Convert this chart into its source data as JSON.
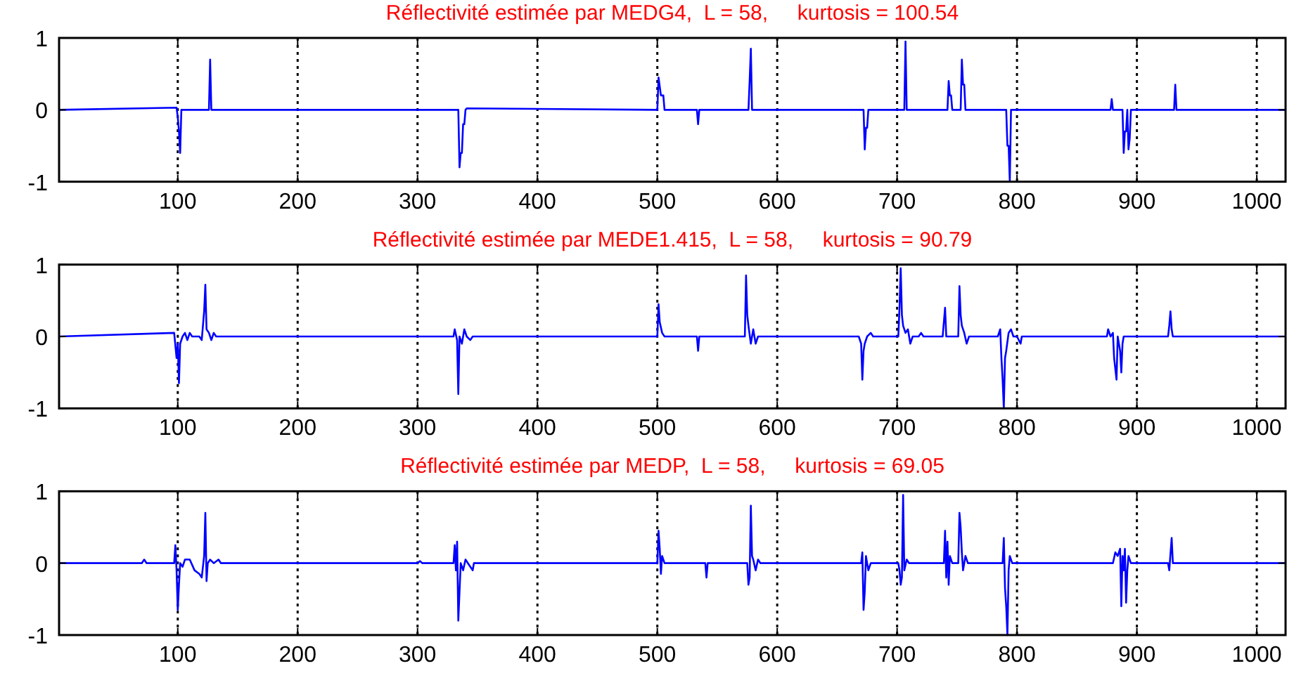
{
  "chart_data": [
    {
      "type": "line",
      "title": "Réflectivité estimée par MEDG4,  L = 58,     kurtosis = 100.54",
      "xlim": [
        1,
        1024
      ],
      "ylim": [
        -1,
        1
      ],
      "xticks": [
        100,
        200,
        300,
        400,
        500,
        600,
        700,
        800,
        900,
        1000
      ],
      "yticks": [
        -1,
        0,
        1
      ],
      "grid": "x",
      "line_style": "solid",
      "series": [
        {
          "color": "#0000ff",
          "x": [
            1,
            99,
            100,
            101,
            102,
            103,
            126,
            127,
            128,
            333,
            334,
            335,
            336,
            337,
            338,
            339,
            340,
            341,
            500,
            501,
            503,
            505,
            506,
            533,
            534,
            535,
            576,
            577,
            578,
            579,
            672,
            673,
            674,
            675,
            676,
            706,
            707,
            708,
            742,
            743,
            744,
            745,
            746,
            753,
            754,
            755,
            756,
            757,
            791,
            792,
            793,
            794,
            795,
            878,
            879,
            880,
            888,
            889,
            890,
            891,
            892,
            893,
            894,
            895,
            931,
            932,
            933,
            1024
          ],
          "values": [
            0,
            0.03,
            -0.1,
            -0.3,
            -0.6,
            0,
            0,
            0.7,
            0,
            0,
            0,
            -0.8,
            -0.6,
            -0.6,
            -0.2,
            -0.2,
            0,
            0.02,
            0,
            0.45,
            0.2,
            0.2,
            0,
            0,
            -0.2,
            0,
            0,
            0.4,
            0.85,
            0,
            0,
            -0.55,
            -0.25,
            -0.25,
            0,
            0,
            0.95,
            0,
            0,
            0.4,
            0.2,
            0.2,
            0,
            0,
            0.7,
            0.35,
            0.35,
            0,
            0,
            -0.5,
            -0.5,
            -1,
            0,
            0,
            0.15,
            0,
            0,
            -0.6,
            -0.3,
            -0.3,
            0,
            -0.55,
            -0.4,
            0,
            0,
            0.35,
            0,
            0
          ]
        }
      ]
    },
    {
      "type": "line",
      "title": "Réflectivité estimée par MEDE1.415,  L = 58,     kurtosis = 90.79",
      "xlim": [
        1,
        1024
      ],
      "ylim": [
        -1,
        1
      ],
      "xticks": [
        100,
        200,
        300,
        400,
        500,
        600,
        700,
        800,
        900,
        1000
      ],
      "yticks": [
        -1,
        0,
        1
      ],
      "grid": "x",
      "line_style": "solid",
      "series": [
        {
          "color": "#0000ff",
          "x": [
            1,
            97,
            99,
            100,
            101,
            102,
            104,
            106,
            108,
            110,
            112,
            118,
            120,
            122,
            123,
            124,
            126,
            128,
            130,
            132,
            330,
            331,
            333,
            334,
            335,
            337,
            339,
            341,
            344,
            346,
            500,
            501,
            502,
            504,
            506,
            533,
            534,
            535,
            573,
            574,
            575,
            576,
            578,
            580,
            582,
            584,
            668,
            670,
            671,
            672,
            673,
            675,
            678,
            680,
            701,
            702,
            703,
            704,
            705,
            707,
            709,
            711,
            713,
            718,
            720,
            722,
            738,
            740,
            741,
            745,
            751,
            752,
            753,
            754,
            756,
            758,
            760,
            784,
            786,
            787,
            788,
            789,
            790,
            791,
            793,
            795,
            797,
            800,
            803,
            804,
            875,
            876,
            878,
            880,
            881,
            883,
            884,
            886,
            887,
            888,
            889,
            926,
            927,
            928,
            929,
            930,
            1024
          ],
          "values": [
            0,
            0.05,
            -0.3,
            -0.1,
            -0.65,
            -0.1,
            0,
            0.05,
            -0.05,
            0.05,
            0,
            0,
            -0.05,
            0.35,
            0.72,
            0.1,
            0.05,
            -0.05,
            0.05,
            0,
            0,
            0.1,
            -0.05,
            -0.8,
            0,
            -0.1,
            0.1,
            0,
            -0.05,
            0,
            0,
            0.45,
            0.2,
            0.05,
            0,
            0,
            -0.2,
            0,
            0,
            0.85,
            0.3,
            0.15,
            -0.1,
            0.1,
            -0.1,
            0,
            0,
            -0.1,
            -0.6,
            -0.2,
            -0.1,
            0,
            0.05,
            0,
            0,
            0.4,
            0.95,
            0.3,
            0.15,
            0.05,
            0.1,
            -0.1,
            0,
            0,
            0.05,
            0,
            0,
            0.4,
            0,
            0,
            0,
            0.7,
            0.3,
            0.15,
            0.05,
            -0.1,
            0,
            0,
            0.1,
            -0.3,
            -0.6,
            -1,
            -0.3,
            -0.2,
            0.05,
            0.1,
            0,
            0,
            -0.1,
            0,
            0,
            0.1,
            0,
            0.05,
            -0.3,
            -0.6,
            0,
            -0.2,
            -0.5,
            -0.1,
            0,
            0,
            0.15,
            0.35,
            0.1,
            0,
            0
          ]
        }
      ]
    },
    {
      "type": "line",
      "title": "Réflectivité estimée par MEDP,  L = 58,     kurtosis = 69.05",
      "xlim": [
        1,
        1024
      ],
      "ylim": [
        -1,
        1
      ],
      "xticks": [
        100,
        200,
        300,
        400,
        500,
        600,
        700,
        800,
        900,
        1000
      ],
      "yticks": [
        -1,
        0,
        1
      ],
      "grid": "x",
      "line_style": "solid",
      "series": [
        {
          "color": "#0000ff",
          "x": [
            1,
            70,
            72,
            74,
            97,
            98,
            99,
            100,
            101,
            102,
            104,
            106,
            110,
            114,
            118,
            120,
            122,
            123,
            124,
            125,
            127,
            130,
            134,
            136,
            300,
            302,
            304,
            330,
            331,
            332,
            333,
            334,
            335,
            336,
            338,
            340,
            342,
            346,
            347,
            500,
            501,
            502,
            503,
            504,
            506,
            540,
            541,
            542,
            575,
            576,
            577,
            578,
            579,
            580,
            582,
            584,
            586,
            670,
            671,
            672,
            673,
            674,
            676,
            678,
            701,
            702,
            703,
            704,
            705,
            706,
            708,
            710,
            739,
            740,
            741,
            742,
            743,
            744,
            746,
            751,
            752,
            753,
            754,
            755,
            757,
            759,
            788,
            789,
            790,
            791,
            792,
            793,
            794,
            796,
            880,
            882,
            884,
            886,
            887,
            888,
            889,
            890,
            891,
            892,
            893,
            895,
            926,
            927,
            929,
            930,
            1024
          ],
          "values": [
            0,
            0,
            0.05,
            0,
            0,
            0.25,
            -0.1,
            -0.65,
            -0.3,
            0,
            -0.05,
            0.05,
            0.05,
            -0.1,
            -0.15,
            -0.2,
            0.1,
            0.7,
            -0.25,
            0,
            0.05,
            0,
            0.05,
            0,
            0,
            0.03,
            0,
            0,
            0.25,
            -0.1,
            0.3,
            -0.8,
            -0.4,
            0,
            -0.1,
            0.05,
            0,
            -0.1,
            0,
            0,
            0.45,
            0.2,
            -0.15,
            0.1,
            0,
            0,
            -0.2,
            0,
            0,
            -0.3,
            -0.2,
            0.8,
            0.1,
            0.05,
            -0.1,
            0.05,
            0,
            0,
            0.15,
            -0.65,
            -0.4,
            0.1,
            -0.1,
            0,
            0,
            -0.1,
            -0.3,
            -0.2,
            0.95,
            -0.1,
            0.05,
            0,
            0,
            0.45,
            -0.2,
            0.3,
            -0.3,
            0.1,
            0,
            0,
            0.7,
            0.5,
            0.15,
            -0.1,
            0.1,
            0,
            0,
            0.35,
            -0.35,
            -0.6,
            -1,
            -0.1,
            0.1,
            0,
            0,
            0.15,
            0.1,
            0.2,
            -0.6,
            0.1,
            -0.1,
            0.2,
            -0.55,
            -0.1,
            0.1,
            0,
            0,
            -0.1,
            0.35,
            0,
            0
          ]
        }
      ]
    }
  ]
}
